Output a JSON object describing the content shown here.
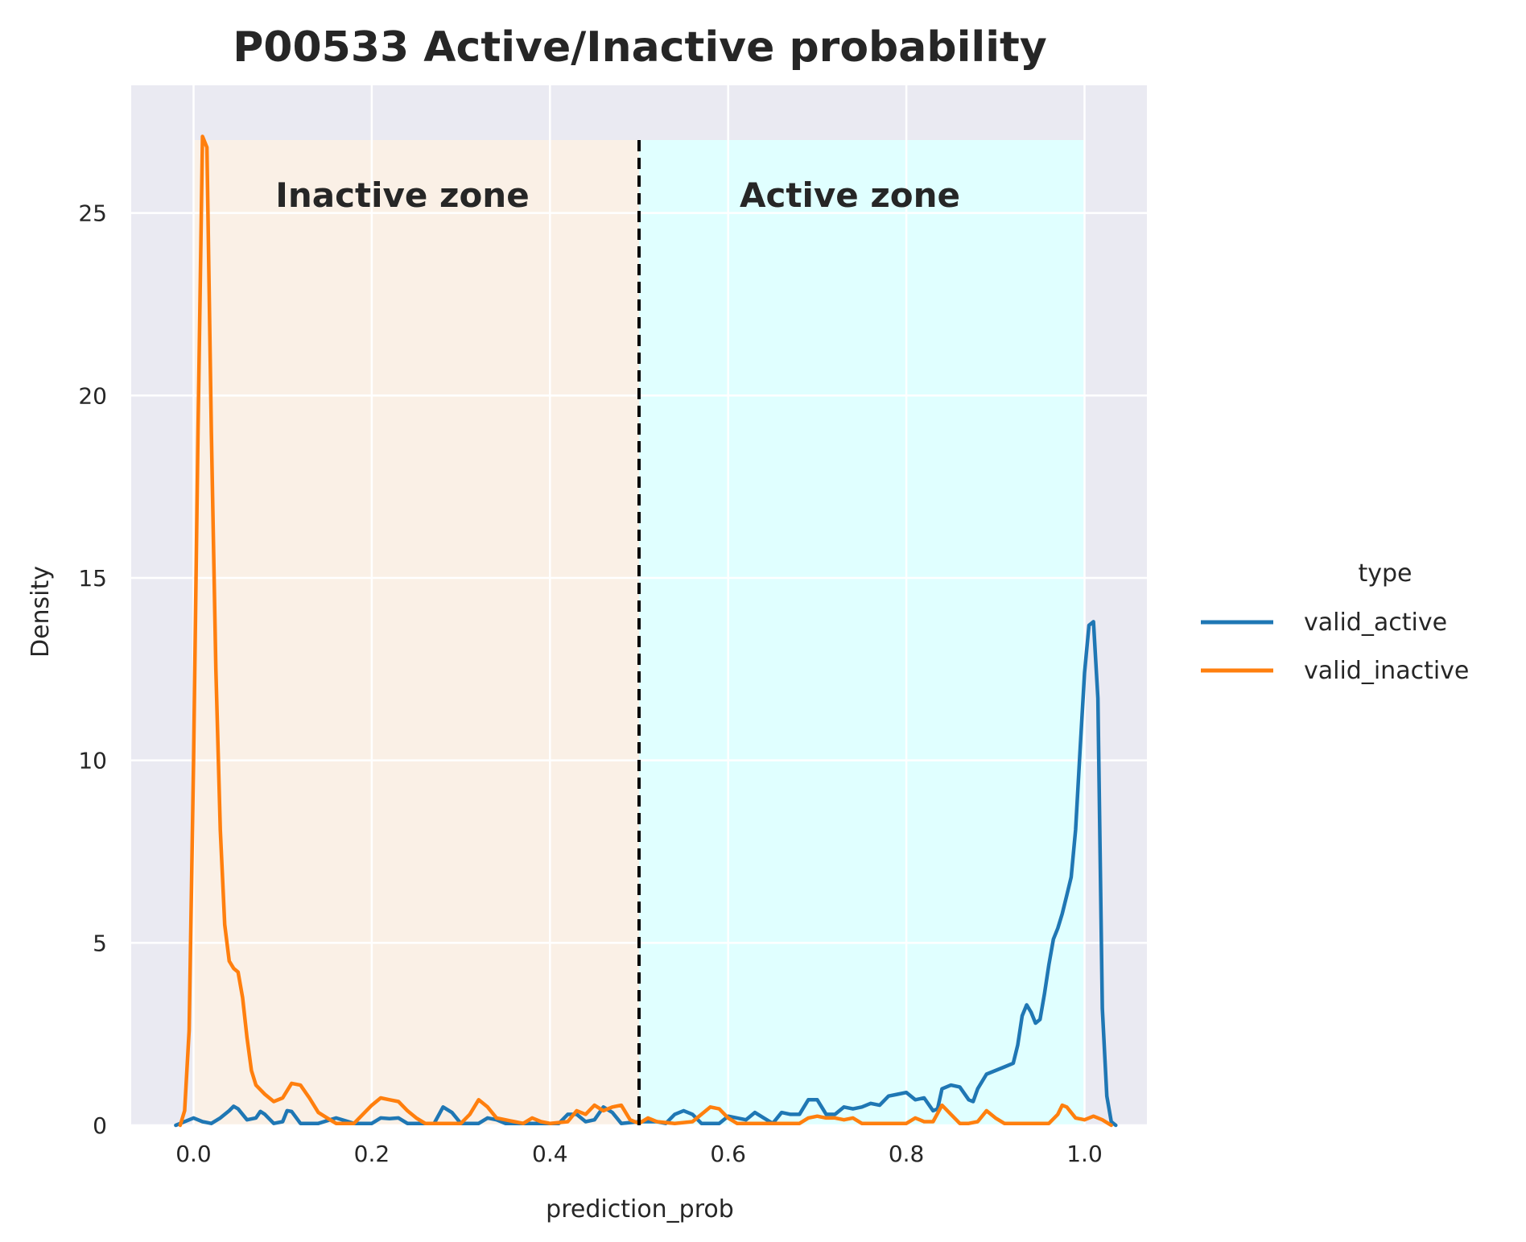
{
  "chart_data": {
    "type": "line",
    "title": "P00533  Active/Inactive probability",
    "xlabel": "prediction_prob",
    "ylabel": "Density",
    "xlim": [
      -0.07,
      1.07
    ],
    "ylim": [
      0,
      28.5
    ],
    "x_ticks": [
      "0.0",
      "0.2",
      "0.4",
      "0.6",
      "0.8",
      "1.0"
    ],
    "y_ticks": [
      "0",
      "5",
      "10",
      "15",
      "20",
      "25"
    ],
    "x_tick_values": [
      0.0,
      0.2,
      0.4,
      0.6,
      0.8,
      1.0
    ],
    "y_tick_values": [
      0,
      5,
      10,
      15,
      20,
      25
    ],
    "grid": true,
    "background": "#eaeaf2",
    "threshold": 0.5,
    "zones": [
      {
        "label": "Inactive zone",
        "x_range": [
          0.0,
          0.5
        ],
        "y_top": 27,
        "color": "#faf0e6"
      },
      {
        "label": "Active zone",
        "x_range": [
          0.5,
          1.0
        ],
        "y_top": 27,
        "color": "#e0ffff"
      }
    ],
    "legend": {
      "title": "type",
      "placement": "right"
    },
    "series": [
      {
        "name": "valid_active",
        "color": "#1f77b4",
        "points": [
          [
            -0.02,
            0
          ],
          [
            0,
            0.2
          ],
          [
            0.01,
            0.1
          ],
          [
            0.02,
            0.05
          ],
          [
            0.03,
            0.2
          ],
          [
            0.04,
            0.4
          ],
          [
            0.045,
            0.52
          ],
          [
            0.05,
            0.45
          ],
          [
            0.06,
            0.15
          ],
          [
            0.07,
            0.2
          ],
          [
            0.075,
            0.38
          ],
          [
            0.08,
            0.3
          ],
          [
            0.09,
            0.05
          ],
          [
            0.1,
            0.1
          ],
          [
            0.105,
            0.4
          ],
          [
            0.11,
            0.38
          ],
          [
            0.12,
            0.05
          ],
          [
            0.14,
            0.05
          ],
          [
            0.16,
            0.2
          ],
          [
            0.18,
            0.05
          ],
          [
            0.2,
            0.05
          ],
          [
            0.21,
            0.2
          ],
          [
            0.22,
            0.18
          ],
          [
            0.23,
            0.2
          ],
          [
            0.24,
            0.05
          ],
          [
            0.27,
            0.05
          ],
          [
            0.28,
            0.5
          ],
          [
            0.29,
            0.35
          ],
          [
            0.3,
            0.05
          ],
          [
            0.32,
            0.05
          ],
          [
            0.33,
            0.2
          ],
          [
            0.34,
            0.15
          ],
          [
            0.35,
            0.05
          ],
          [
            0.41,
            0.05
          ],
          [
            0.42,
            0.3
          ],
          [
            0.43,
            0.3
          ],
          [
            0.44,
            0.1
          ],
          [
            0.45,
            0.15
          ],
          [
            0.46,
            0.5
          ],
          [
            0.47,
            0.35
          ],
          [
            0.48,
            0.05
          ],
          [
            0.5,
            0.1
          ],
          [
            0.52,
            0.1
          ],
          [
            0.53,
            0.05
          ],
          [
            0.54,
            0.3
          ],
          [
            0.55,
            0.4
          ],
          [
            0.56,
            0.3
          ],
          [
            0.57,
            0.05
          ],
          [
            0.59,
            0.05
          ],
          [
            0.6,
            0.25
          ],
          [
            0.61,
            0.2
          ],
          [
            0.62,
            0.15
          ],
          [
            0.63,
            0.35
          ],
          [
            0.64,
            0.2
          ],
          [
            0.65,
            0.05
          ],
          [
            0.66,
            0.35
          ],
          [
            0.67,
            0.3
          ],
          [
            0.68,
            0.3
          ],
          [
            0.69,
            0.7
          ],
          [
            0.7,
            0.7
          ],
          [
            0.71,
            0.3
          ],
          [
            0.72,
            0.3
          ],
          [
            0.73,
            0.5
          ],
          [
            0.74,
            0.45
          ],
          [
            0.75,
            0.5
          ],
          [
            0.76,
            0.6
          ],
          [
            0.77,
            0.55
          ],
          [
            0.78,
            0.8
          ],
          [
            0.79,
            0.85
          ],
          [
            0.8,
            0.9
          ],
          [
            0.81,
            0.7
          ],
          [
            0.82,
            0.75
          ],
          [
            0.83,
            0.4
          ],
          [
            0.835,
            0.45
          ],
          [
            0.84,
            1.0
          ],
          [
            0.85,
            1.1
          ],
          [
            0.86,
            1.05
          ],
          [
            0.87,
            0.7
          ],
          [
            0.875,
            0.65
          ],
          [
            0.88,
            1.0
          ],
          [
            0.89,
            1.4
          ],
          [
            0.9,
            1.5
          ],
          [
            0.91,
            1.6
          ],
          [
            0.92,
            1.7
          ],
          [
            0.925,
            2.2
          ],
          [
            0.93,
            3.0
          ],
          [
            0.935,
            3.3
          ],
          [
            0.94,
            3.1
          ],
          [
            0.945,
            2.8
          ],
          [
            0.95,
            2.9
          ],
          [
            0.955,
            3.6
          ],
          [
            0.96,
            4.4
          ],
          [
            0.965,
            5.1
          ],
          [
            0.97,
            5.4
          ],
          [
            0.975,
            5.8
          ],
          [
            0.98,
            6.3
          ],
          [
            0.985,
            6.8
          ],
          [
            0.99,
            8.1
          ],
          [
            0.995,
            10.3
          ],
          [
            1.0,
            12.4
          ],
          [
            1.005,
            13.7
          ],
          [
            1.01,
            13.8
          ],
          [
            1.015,
            11.7
          ],
          [
            1.02,
            3.2
          ],
          [
            1.025,
            0.8
          ],
          [
            1.03,
            0.1
          ],
          [
            1.035,
            0
          ]
        ]
      },
      {
        "name": "valid_inactive",
        "color": "#ff7f0e",
        "points": [
          [
            -0.015,
            0
          ],
          [
            -0.01,
            0.4
          ],
          [
            -0.005,
            2.6
          ],
          [
            0,
            10
          ],
          [
            0.005,
            19
          ],
          [
            0.01,
            27.1
          ],
          [
            0.015,
            26.8
          ],
          [
            0.02,
            19
          ],
          [
            0.025,
            12.5
          ],
          [
            0.03,
            8.1
          ],
          [
            0.035,
            5.5
          ],
          [
            0.04,
            4.5
          ],
          [
            0.045,
            4.3
          ],
          [
            0.05,
            4.2
          ],
          [
            0.055,
            3.5
          ],
          [
            0.06,
            2.4
          ],
          [
            0.065,
            1.5
          ],
          [
            0.07,
            1.1
          ],
          [
            0.08,
            0.85
          ],
          [
            0.09,
            0.65
          ],
          [
            0.1,
            0.75
          ],
          [
            0.11,
            1.15
          ],
          [
            0.12,
            1.1
          ],
          [
            0.13,
            0.75
          ],
          [
            0.14,
            0.35
          ],
          [
            0.15,
            0.2
          ],
          [
            0.16,
            0.05
          ],
          [
            0.17,
            0.05
          ],
          [
            0.18,
            0.05
          ],
          [
            0.19,
            0.3
          ],
          [
            0.2,
            0.55
          ],
          [
            0.21,
            0.75
          ],
          [
            0.22,
            0.7
          ],
          [
            0.23,
            0.65
          ],
          [
            0.24,
            0.4
          ],
          [
            0.25,
            0.2
          ],
          [
            0.26,
            0.05
          ],
          [
            0.3,
            0.05
          ],
          [
            0.31,
            0.3
          ],
          [
            0.32,
            0.7
          ],
          [
            0.33,
            0.5
          ],
          [
            0.34,
            0.2
          ],
          [
            0.35,
            0.15
          ],
          [
            0.36,
            0.1
          ],
          [
            0.37,
            0.05
          ],
          [
            0.38,
            0.2
          ],
          [
            0.39,
            0.1
          ],
          [
            0.4,
            0.05
          ],
          [
            0.42,
            0.1
          ],
          [
            0.43,
            0.4
          ],
          [
            0.44,
            0.3
          ],
          [
            0.45,
            0.55
          ],
          [
            0.46,
            0.4
          ],
          [
            0.47,
            0.5
          ],
          [
            0.48,
            0.55
          ],
          [
            0.49,
            0.15
          ],
          [
            0.5,
            0.05
          ],
          [
            0.51,
            0.2
          ],
          [
            0.52,
            0.1
          ],
          [
            0.54,
            0.05
          ],
          [
            0.56,
            0.1
          ],
          [
            0.57,
            0.3
          ],
          [
            0.58,
            0.5
          ],
          [
            0.59,
            0.45
          ],
          [
            0.6,
            0.2
          ],
          [
            0.61,
            0.05
          ],
          [
            0.62,
            0.05
          ],
          [
            0.64,
            0.05
          ],
          [
            0.66,
            0.05
          ],
          [
            0.68,
            0.05
          ],
          [
            0.69,
            0.2
          ],
          [
            0.7,
            0.25
          ],
          [
            0.71,
            0.2
          ],
          [
            0.72,
            0.2
          ],
          [
            0.73,
            0.15
          ],
          [
            0.74,
            0.2
          ],
          [
            0.75,
            0.05
          ],
          [
            0.8,
            0.05
          ],
          [
            0.81,
            0.2
          ],
          [
            0.82,
            0.1
          ],
          [
            0.83,
            0.1
          ],
          [
            0.84,
            0.55
          ],
          [
            0.85,
            0.3
          ],
          [
            0.86,
            0.05
          ],
          [
            0.87,
            0.05
          ],
          [
            0.88,
            0.1
          ],
          [
            0.89,
            0.4
          ],
          [
            0.9,
            0.2
          ],
          [
            0.91,
            0.05
          ],
          [
            0.96,
            0.05
          ],
          [
            0.97,
            0.3
          ],
          [
            0.975,
            0.55
          ],
          [
            0.98,
            0.5
          ],
          [
            0.99,
            0.2
          ],
          [
            1.0,
            0.15
          ],
          [
            1.01,
            0.25
          ],
          [
            1.02,
            0.15
          ],
          [
            1.03,
            0
          ]
        ]
      }
    ]
  }
}
